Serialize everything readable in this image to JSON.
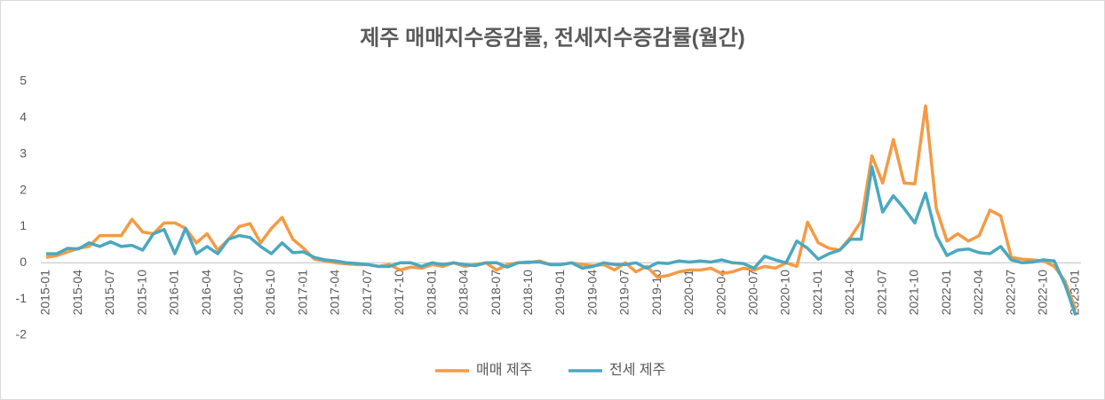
{
  "chart_data": {
    "type": "line",
    "title": "제주 매매지수증감률, 전세지수증감률(월간)",
    "categories": [
      "2015-01",
      null,
      null,
      "2015-04",
      null,
      null,
      "2015-07",
      null,
      null,
      "2015-10",
      null,
      null,
      "2016-01",
      null,
      null,
      "2016-04",
      null,
      null,
      "2016-07",
      null,
      null,
      "2016-10",
      null,
      null,
      "2017-01",
      null,
      null,
      "2017-04",
      null,
      null,
      "2017-07",
      null,
      null,
      "2017-10",
      null,
      null,
      "2018-01",
      null,
      null,
      "2018-04",
      null,
      null,
      "2018-07",
      null,
      null,
      "2018-10",
      null,
      null,
      "2019-01",
      null,
      null,
      "2019-04",
      null,
      null,
      "2019-07",
      null,
      null,
      "2019-10",
      null,
      null,
      "2020-01",
      null,
      null,
      "2020-04",
      null,
      null,
      "2020-07",
      null,
      null,
      "2020-10",
      null,
      null,
      "2021-01",
      null,
      null,
      "2021-04",
      null,
      null,
      "2021-07",
      null,
      null,
      "2021-10",
      null,
      null,
      "2022-01",
      null,
      null,
      "2022-04",
      null,
      null,
      "2022-07",
      null,
      null,
      "2022-10",
      null,
      null,
      "2023-01"
    ],
    "series": [
      {
        "name": "매매 제주",
        "color": "#f59a44",
        "values": [
          0.15,
          0.2,
          0.3,
          0.4,
          0.45,
          0.75,
          0.75,
          0.75,
          1.2,
          0.85,
          0.8,
          1.1,
          1.1,
          0.95,
          0.55,
          0.8,
          0.35,
          0.65,
          1.0,
          1.08,
          0.55,
          0.95,
          1.25,
          0.65,
          0.4,
          0.1,
          0.05,
          0.0,
          -0.03,
          -0.05,
          -0.05,
          -0.1,
          -0.05,
          -0.2,
          -0.12,
          -0.15,
          -0.05,
          -0.1,
          0.0,
          -0.1,
          -0.05,
          0.0,
          -0.2,
          -0.05,
          0.0,
          0.0,
          0.05,
          -0.05,
          -0.05,
          0.0,
          -0.05,
          -0.08,
          -0.05,
          -0.2,
          0.0,
          -0.25,
          -0.1,
          -0.4,
          -0.35,
          -0.25,
          -0.2,
          -0.2,
          -0.15,
          -0.3,
          -0.25,
          -0.15,
          -0.2,
          -0.1,
          -0.15,
          0.0,
          -0.1,
          1.12,
          0.55,
          0.4,
          0.35,
          0.7,
          1.15,
          2.95,
          2.2,
          3.4,
          2.2,
          2.18,
          4.33,
          1.5,
          0.6,
          0.8,
          0.6,
          0.75,
          1.45,
          1.3,
          0.15,
          0.1,
          0.08,
          0.05,
          -0.1,
          -0.5,
          -1.3
        ]
      },
      {
        "name": "전세 제주",
        "color": "#4aa8bf",
        "values": [
          0.25,
          0.25,
          0.4,
          0.38,
          0.55,
          0.45,
          0.58,
          0.45,
          0.48,
          0.35,
          0.8,
          0.92,
          0.25,
          0.95,
          0.25,
          0.45,
          0.25,
          0.65,
          0.75,
          0.7,
          0.45,
          0.25,
          0.55,
          0.28,
          0.3,
          0.15,
          0.08,
          0.05,
          0.0,
          -0.02,
          -0.05,
          -0.1,
          -0.1,
          0.0,
          0.0,
          -0.1,
          0.0,
          -0.05,
          0.0,
          -0.05,
          -0.08,
          0.0,
          0.0,
          -0.12,
          0.0,
          0.02,
          0.02,
          -0.05,
          -0.05,
          0.0,
          -0.15,
          -0.1,
          0.0,
          -0.05,
          -0.05,
          0.0,
          -0.15,
          0.0,
          -0.02,
          0.05,
          0.02,
          0.05,
          0.02,
          0.08,
          0.0,
          -0.02,
          -0.15,
          0.18,
          0.08,
          0.0,
          0.6,
          0.4,
          0.1,
          0.25,
          0.35,
          0.65,
          0.65,
          2.65,
          1.4,
          1.85,
          1.5,
          1.1,
          1.92,
          0.75,
          0.2,
          0.35,
          0.38,
          0.28,
          0.25,
          0.45,
          0.08,
          0.0,
          0.02,
          0.08,
          0.05,
          -0.6,
          -1.45
        ]
      }
    ],
    "ylim": [
      -2,
      5
    ],
    "yticks": [
      -2,
      -1,
      0,
      1,
      2,
      3,
      4,
      5
    ],
    "grid": false,
    "legend": "bottom"
  }
}
